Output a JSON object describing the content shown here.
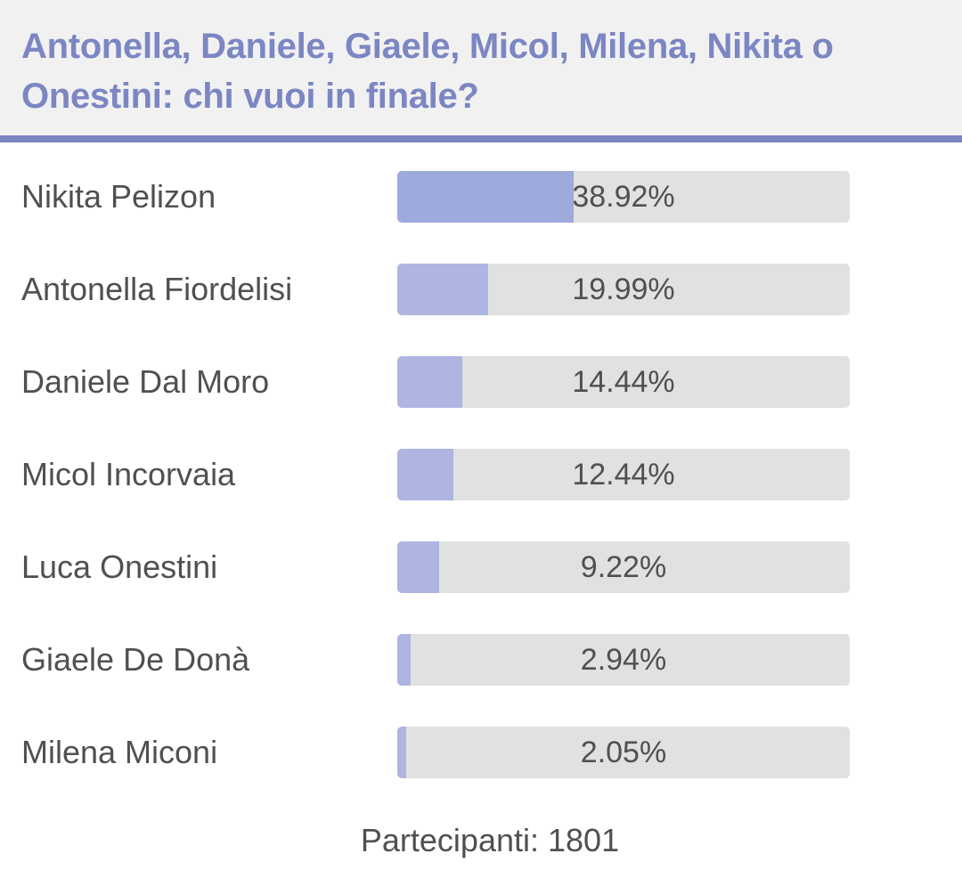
{
  "poll": {
    "title": "Antonella, Daniele, Giaele, Micol, Milena, Nikita o Onestini: chi vuoi in finale?",
    "options": [
      {
        "name": "Nikita Pelizon",
        "percent_label": "38.92%",
        "percent": 38.92,
        "leader": true
      },
      {
        "name": "Antonella Fiordelisi",
        "percent_label": "19.99%",
        "percent": 19.99,
        "leader": false
      },
      {
        "name": "Daniele Dal Moro",
        "percent_label": "14.44%",
        "percent": 14.44,
        "leader": false
      },
      {
        "name": "Micol Incorvaia",
        "percent_label": "12.44%",
        "percent": 12.44,
        "leader": false
      },
      {
        "name": "Luca Onestini",
        "percent_label": "9.22%",
        "percent": 9.22,
        "leader": false
      },
      {
        "name": "Giaele De Donà",
        "percent_label": "2.94%",
        "percent": 2.94,
        "leader": false
      },
      {
        "name": "Milena Miconi",
        "percent_label": "2.05%",
        "percent": 2.05,
        "leader": false
      }
    ],
    "participants_label": "Partecipanti: 1801"
  },
  "colors": {
    "accent": "#7b86c2",
    "bar_fill": "#aeb5e0",
    "bar_fill_leader": "#9ea9dc",
    "bar_track": "#e1e1e1",
    "header_bg": "#f1f1f2",
    "text": "#505050"
  }
}
